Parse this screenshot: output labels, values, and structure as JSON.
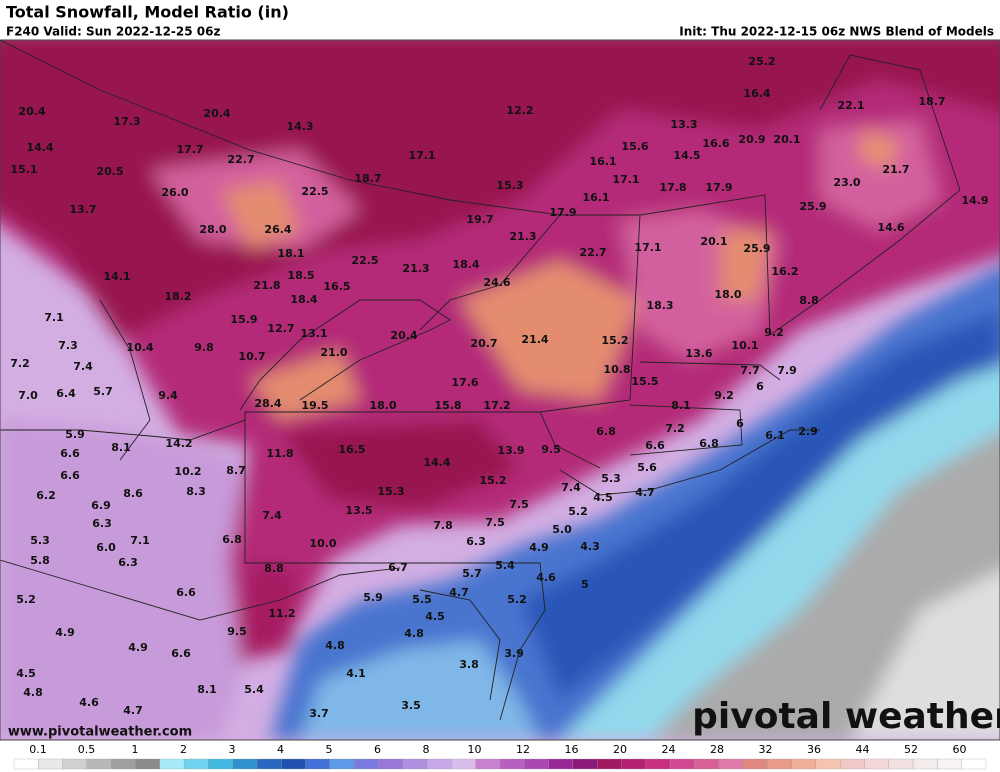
{
  "header": {
    "title": "Total Snowfall, Model Ratio (in)",
    "valid": "F240 Valid: Sun 2022-12-25 06z",
    "init": "Init: Thu 2022-12-15 06z NWS Blend of Models"
  },
  "map": {
    "point_labels": [
      "25.2",
      "20.4",
      "17.3",
      "20.4",
      "14.3",
      "12.2",
      "13.3",
      "16.4",
      "22.1",
      "18.7",
      "14.4",
      "17.7",
      "22.7",
      "17.1",
      "15.6",
      "16.6",
      "20.9",
      "20.1",
      "14.5",
      "16.1",
      "15.1",
      "20.5",
      "18.7",
      "15.3",
      "17.1",
      "17.8",
      "17.9",
      "23.0",
      "21.7",
      "26.0",
      "22.5",
      "16.1",
      "25.9",
      "14.9",
      "13.7",
      "28.0",
      "26.4",
      "19.7",
      "17.9",
      "14.6",
      "21.3",
      "22.7",
      "17.1",
      "20.1",
      "25.9",
      "14.1",
      "18.1",
      "22.5",
      "21.3",
      "18.4",
      "16.2",
      "18.5",
      "21.8",
      "16.5",
      "24.6",
      "18.0",
      "8.8",
      "18.2",
      "18.4",
      "18.3",
      "7.1",
      "15.9",
      "12.7",
      "13.1",
      "20.4",
      "21.4",
      "15.2",
      "9.2",
      "10.1",
      "7.3",
      "10.4",
      "9.8",
      "21.0",
      "20.7",
      "13.6",
      "7.2",
      "7.4",
      "10.7",
      "10.8",
      "7.7",
      "7.9",
      "17.6",
      "15.5",
      "6",
      "7.0",
      "6.4",
      "5.7",
      "9.4",
      "9.2",
      "28.4",
      "19.5",
      "18.0",
      "15.8",
      "17.2",
      "8.1",
      "5.9",
      "14.2",
      "7.2",
      "6.8",
      "6",
      "6.1",
      "2.9",
      "6.6",
      "8.1",
      "16.5",
      "13.9",
      "9.5",
      "6.6",
      "6.8",
      "11.8",
      "14.4",
      "5.6",
      "6.6",
      "10.2",
      "8.7",
      "15.2",
      "5.3",
      "7.4",
      "6.2",
      "8.6",
      "8.3",
      "15.3",
      "4.5",
      "4.7",
      "6.9",
      "13.5",
      "7.5",
      "5.2",
      "6.3",
      "7.4",
      "7.8",
      "7.5",
      "5.0",
      "5.3",
      "7.1",
      "6.8",
      "10.0",
      "6.3",
      "4.9",
      "4.3",
      "6.0",
      "5.8",
      "6.3",
      "5.4",
      "6.7",
      "8.8",
      "5.7",
      "4.6",
      "5",
      "6.6",
      "4.7",
      "5.2",
      "5.2",
      "5.9",
      "5.5",
      "11.2",
      "4.5",
      "9.5",
      "4.9",
      "4.8",
      "4.9",
      "4.8",
      "6.6",
      "3.9",
      "3.8",
      "4.1",
      "4.5",
      "8.1",
      "5.4",
      "4.8",
      "4.6",
      "3.5",
      "4.7",
      "3.7"
    ]
  },
  "legend": {
    "ticks": [
      "0.1",
      "0.5",
      "1",
      "2",
      "3",
      "4",
      "5",
      "6",
      "8",
      "10",
      "12",
      "16",
      "20",
      "24",
      "28",
      "32",
      "36",
      "44",
      "52",
      "60"
    ]
  },
  "footer": {
    "website": "www.pivotalweather.com",
    "brand": "pivotal weather"
  }
}
